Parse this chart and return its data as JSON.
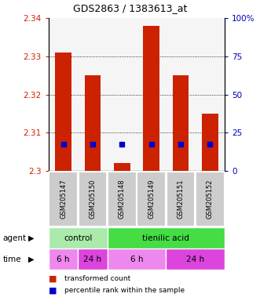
{
  "title": "GDS2863 / 1383613_at",
  "samples": [
    "GSM205147",
    "GSM205150",
    "GSM205148",
    "GSM205149",
    "GSM205151",
    "GSM205152"
  ],
  "bar_values": [
    2.331,
    2.325,
    2.302,
    2.338,
    2.325,
    2.315
  ],
  "bar_bottom": 2.3,
  "percentile_values": [
    2.307,
    2.307,
    2.307,
    2.307,
    2.307,
    2.307
  ],
  "ylim": [
    2.3,
    2.34
  ],
  "yticks_left": [
    2.3,
    2.31,
    2.32,
    2.33,
    2.34
  ],
  "yticks_right_labels": [
    "0",
    "25",
    "50",
    "75",
    "100%"
  ],
  "bar_color": "#cc2200",
  "percentile_color": "#0000cc",
  "agent_row": [
    {
      "label": "control",
      "start": 0,
      "end": 2,
      "color": "#aaeaaa"
    },
    {
      "label": "tienilic acid",
      "start": 2,
      "end": 6,
      "color": "#44dd44"
    }
  ],
  "time_row": [
    {
      "label": "6 h",
      "start": 0,
      "end": 1,
      "color": "#ee88ee"
    },
    {
      "label": "24 h",
      "start": 1,
      "end": 2,
      "color": "#dd44dd"
    },
    {
      "label": "6 h",
      "start": 2,
      "end": 4,
      "color": "#ee88ee"
    },
    {
      "label": "24 h",
      "start": 4,
      "end": 6,
      "color": "#dd44dd"
    }
  ],
  "legend_items": [
    {
      "label": "transformed count",
      "color": "#cc2200"
    },
    {
      "label": "percentile rank within the sample",
      "color": "#0000cc"
    }
  ],
  "left_axis_color": "#cc2200",
  "right_axis_color": "#0000bb",
  "plot_bg": "#f5f5f5"
}
